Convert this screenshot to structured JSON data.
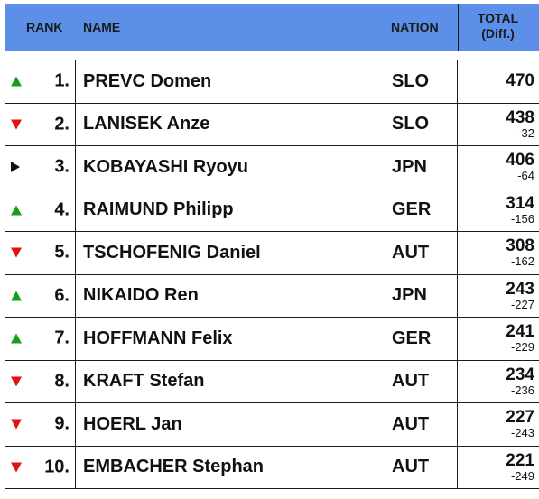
{
  "header": {
    "rank": "RANK",
    "name": "NAME",
    "nation": "NATION",
    "total_line1": "TOTAL",
    "total_line2": "(Diff.)"
  },
  "colors": {
    "header_bg": "#5b8fe8",
    "arrow_up": "#14a014",
    "arrow_down": "#e01212",
    "arrow_same": "#111111"
  },
  "rows": [
    {
      "trend": "up",
      "trend_icon": "arrow-up-icon",
      "rank": "1.",
      "name": "PREVC Domen",
      "nation": "SLO",
      "total": "470",
      "diff": ""
    },
    {
      "trend": "down",
      "trend_icon": "arrow-down-icon",
      "rank": "2.",
      "name": "LANISEK Anze",
      "nation": "SLO",
      "total": "438",
      "diff": "-32"
    },
    {
      "trend": "same",
      "trend_icon": "arrow-right-icon",
      "rank": "3.",
      "name": "KOBAYASHI Ryoyu",
      "nation": "JPN",
      "total": "406",
      "diff": "-64"
    },
    {
      "trend": "up",
      "trend_icon": "arrow-up-icon",
      "rank": "4.",
      "name": "RAIMUND Philipp",
      "nation": "GER",
      "total": "314",
      "diff": "-156"
    },
    {
      "trend": "down",
      "trend_icon": "arrow-down-icon",
      "rank": "5.",
      "name": "TSCHOFENIG Daniel",
      "nation": "AUT",
      "total": "308",
      "diff": "-162"
    },
    {
      "trend": "up",
      "trend_icon": "arrow-up-icon",
      "rank": "6.",
      "name": "NIKAIDO Ren",
      "nation": "JPN",
      "total": "243",
      "diff": "-227"
    },
    {
      "trend": "up",
      "trend_icon": "arrow-up-icon",
      "rank": "7.",
      "name": "HOFFMANN Felix",
      "nation": "GER",
      "total": "241",
      "diff": "-229"
    },
    {
      "trend": "down",
      "trend_icon": "arrow-down-icon",
      "rank": "8.",
      "name": "KRAFT Stefan",
      "nation": "AUT",
      "total": "234",
      "diff": "-236"
    },
    {
      "trend": "down",
      "trend_icon": "arrow-down-icon",
      "rank": "9.",
      "name": "HOERL Jan",
      "nation": "AUT",
      "total": "227",
      "diff": "-243"
    },
    {
      "trend": "down",
      "trend_icon": "arrow-down-icon",
      "rank": "10.",
      "name": "EMBACHER Stephan",
      "nation": "AUT",
      "total": "221",
      "diff": "-249"
    }
  ]
}
